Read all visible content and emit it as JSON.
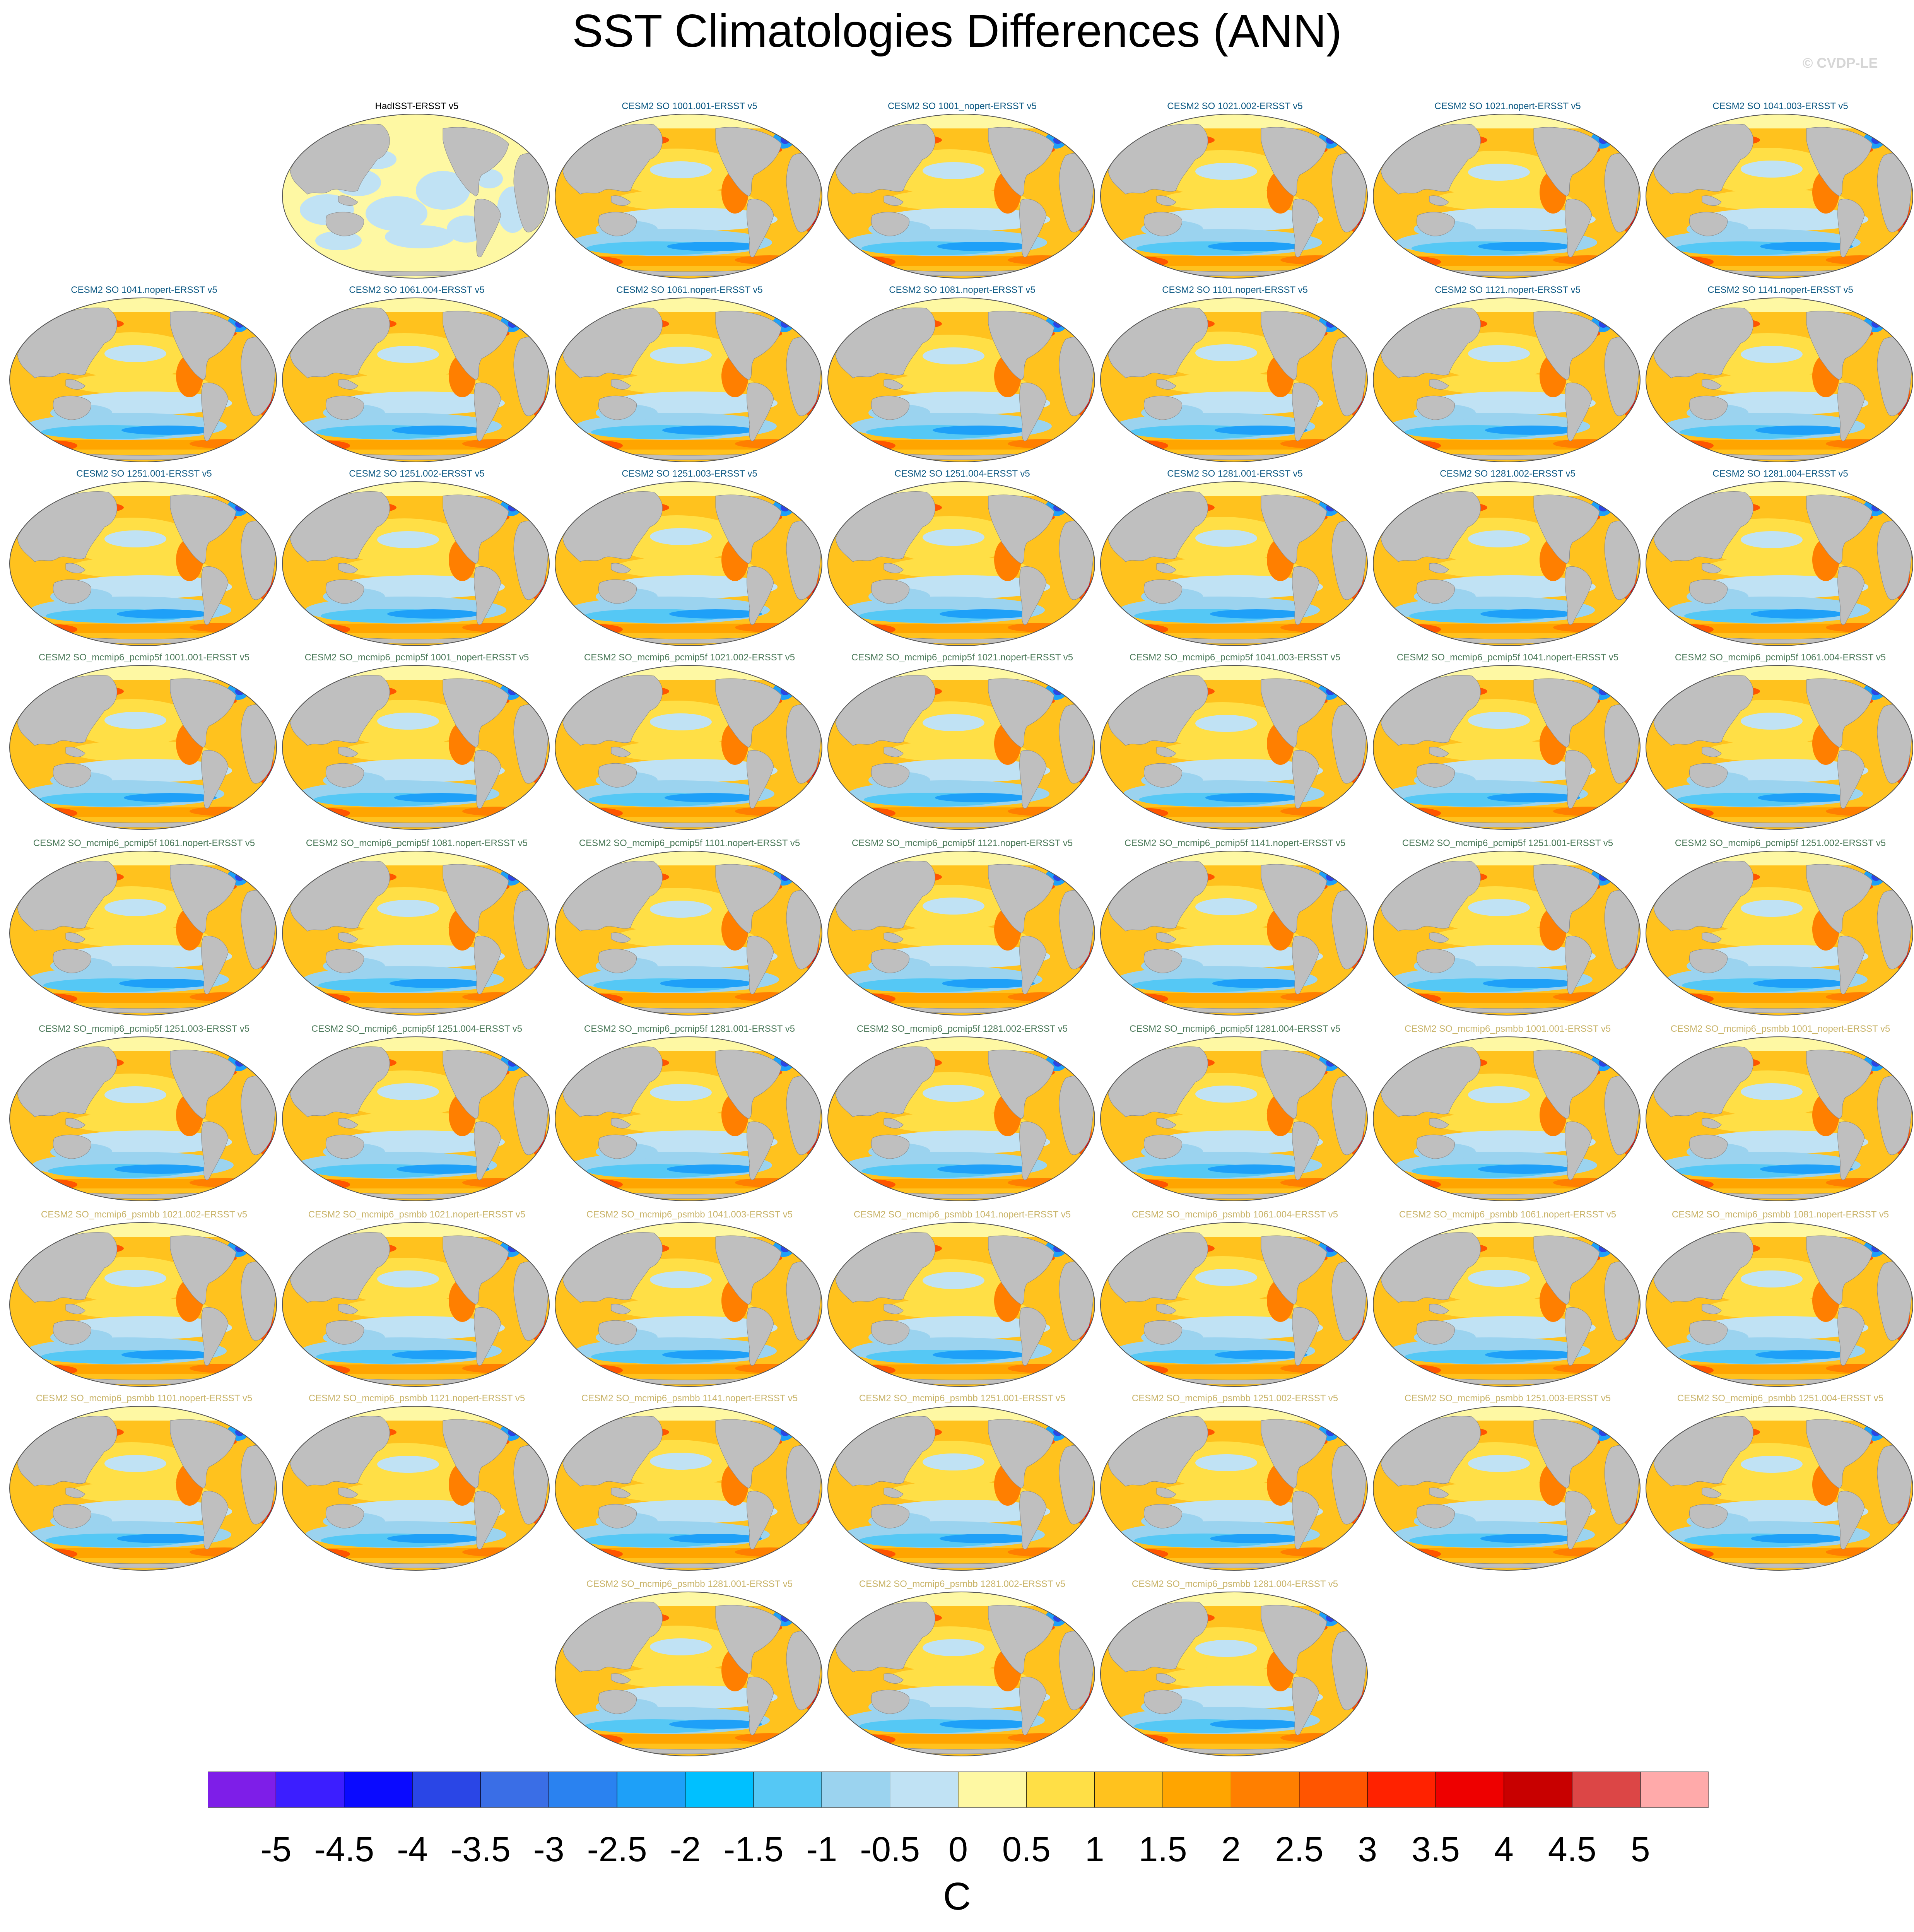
{
  "title": "SST Climatologies Differences (ANN)",
  "watermark": "© CVDP-LE",
  "chart_data": {
    "type": "heatmap",
    "title": "SST Climatologies Differences (ANN)",
    "projection": "global map, Pacific-centered",
    "land_color": "#bfbfbf",
    "colorbar": {
      "units": "C",
      "tick_labels": [
        "-5",
        "-4.5",
        "-4",
        "-3.5",
        "-3",
        "-2.5",
        "-2",
        "-1.5",
        "-1",
        "-0.5",
        "0",
        "0.5",
        "1",
        "1.5",
        "2",
        "2.5",
        "3",
        "3.5",
        "4",
        "4.5",
        "5"
      ],
      "colors": [
        "#7e1ee8",
        "#3c1eff",
        "#0a0aff",
        "#2a46e6",
        "#3a6ee6",
        "#2a82f0",
        "#1ea0f8",
        "#00c0ff",
        "#55c8f5",
        "#9bd3ef",
        "#c0e2f4",
        "#fef8a3",
        "#ffdf46",
        "#ffc21e",
        "#ffa500",
        "#ff7f00",
        "#ff5500",
        "#ff2200",
        "#ee0000",
        "#c80000",
        "#dc4646",
        "#ffaaaa"
      ]
    },
    "panels": [
      {
        "label": "HadISST-ERSST v5",
        "group": "g0",
        "style": "obs"
      },
      {
        "label": "CESM2 SO 1001.001-ERSST v5",
        "group": "g1",
        "style": "model"
      },
      {
        "label": "CESM2 SO 1001_nopert-ERSST v5",
        "group": "g1",
        "style": "model"
      },
      {
        "label": "CESM2 SO 1021.002-ERSST v5",
        "group": "g1",
        "style": "model"
      },
      {
        "label": "CESM2 SO 1021.nopert-ERSST v5",
        "group": "g1",
        "style": "model"
      },
      {
        "label": "CESM2 SO 1041.003-ERSST v5",
        "group": "g1",
        "style": "model"
      },
      {
        "label": "CESM2 SO 1041.nopert-ERSST v5",
        "group": "g1",
        "style": "model"
      },
      {
        "label": "CESM2 SO 1061.004-ERSST v5",
        "group": "g1",
        "style": "model"
      },
      {
        "label": "CESM2 SO 1061.nopert-ERSST v5",
        "group": "g1",
        "style": "model"
      },
      {
        "label": "CESM2 SO 1081.nopert-ERSST v5",
        "group": "g1",
        "style": "model"
      },
      {
        "label": "CESM2 SO 1101.nopert-ERSST v5",
        "group": "g1",
        "style": "model"
      },
      {
        "label": "CESM2 SO 1121.nopert-ERSST v5",
        "group": "g1",
        "style": "model"
      },
      {
        "label": "CESM2 SO 1141.nopert-ERSST v5",
        "group": "g1",
        "style": "model"
      },
      {
        "label": "CESM2 SO 1251.001-ERSST v5",
        "group": "g1",
        "style": "model"
      },
      {
        "label": "CESM2 SO 1251.002-ERSST v5",
        "group": "g1",
        "style": "model"
      },
      {
        "label": "CESM2 SO 1251.003-ERSST v5",
        "group": "g1",
        "style": "model"
      },
      {
        "label": "CESM2 SO 1251.004-ERSST v5",
        "group": "g1",
        "style": "model"
      },
      {
        "label": "CESM2 SO 1281.001-ERSST v5",
        "group": "g1",
        "style": "model"
      },
      {
        "label": "CESM2 SO 1281.002-ERSST v5",
        "group": "g1",
        "style": "model"
      },
      {
        "label": "CESM2 SO 1281.004-ERSST v5",
        "group": "g1",
        "style": "model"
      },
      {
        "label": "CESM2 SO_mcmip6_pcmip5f 1001.001-ERSST v5",
        "group": "g2",
        "style": "model"
      },
      {
        "label": "CESM2 SO_mcmip6_pcmip5f 1001_nopert-ERSST v5",
        "group": "g2",
        "style": "model"
      },
      {
        "label": "CESM2 SO_mcmip6_pcmip5f 1021.002-ERSST v5",
        "group": "g2",
        "style": "model"
      },
      {
        "label": "CESM2 SO_mcmip6_pcmip5f 1021.nopert-ERSST v5",
        "group": "g2",
        "style": "model"
      },
      {
        "label": "CESM2 SO_mcmip6_pcmip5f 1041.003-ERSST v5",
        "group": "g2",
        "style": "model"
      },
      {
        "label": "CESM2 SO_mcmip6_pcmip5f 1041.nopert-ERSST v5",
        "group": "g2",
        "style": "model"
      },
      {
        "label": "CESM2 SO_mcmip6_pcmip5f 1061.004-ERSST v5",
        "group": "g2",
        "style": "model"
      },
      {
        "label": "CESM2 SO_mcmip6_pcmip5f 1061.nopert-ERSST v5",
        "group": "g2",
        "style": "model"
      },
      {
        "label": "CESM2 SO_mcmip6_pcmip5f 1081.nopert-ERSST v5",
        "group": "g2",
        "style": "model"
      },
      {
        "label": "CESM2 SO_mcmip6_pcmip5f 1101.nopert-ERSST v5",
        "group": "g2",
        "style": "model"
      },
      {
        "label": "CESM2 SO_mcmip6_pcmip5f 1121.nopert-ERSST v5",
        "group": "g2",
        "style": "model"
      },
      {
        "label": "CESM2 SO_mcmip6_pcmip5f 1141.nopert-ERSST v5",
        "group": "g2",
        "style": "model"
      },
      {
        "label": "CESM2 SO_mcmip6_pcmip5f 1251.001-ERSST v5",
        "group": "g2",
        "style": "model"
      },
      {
        "label": "CESM2 SO_mcmip6_pcmip5f 1251.002-ERSST v5",
        "group": "g2",
        "style": "model"
      },
      {
        "label": "CESM2 SO_mcmip6_pcmip5f 1251.003-ERSST v5",
        "group": "g2",
        "style": "model"
      },
      {
        "label": "CESM2 SO_mcmip6_pcmip5f 1251.004-ERSST v5",
        "group": "g2",
        "style": "model"
      },
      {
        "label": "CESM2 SO_mcmip6_pcmip5f 1281.001-ERSST v5",
        "group": "g2",
        "style": "model"
      },
      {
        "label": "CESM2 SO_mcmip6_pcmip5f 1281.002-ERSST v5",
        "group": "g2",
        "style": "model"
      },
      {
        "label": "CESM2 SO_mcmip6_pcmip5f 1281.004-ERSST v5",
        "group": "g2",
        "style": "model"
      },
      {
        "label": "CESM2 SO_mcmip6_psmbb 1001.001-ERSST v5",
        "group": "g3",
        "style": "model"
      },
      {
        "label": "CESM2 SO_mcmip6_psmbb 1001_nopert-ERSST v5",
        "group": "g3",
        "style": "model"
      },
      {
        "label": "CESM2 SO_mcmip6_psmbb 1021.002-ERSST v5",
        "group": "g3",
        "style": "model"
      },
      {
        "label": "CESM2 SO_mcmip6_psmbb 1021.nopert-ERSST v5",
        "group": "g3",
        "style": "model"
      },
      {
        "label": "CESM2 SO_mcmip6_psmbb 1041.003-ERSST v5",
        "group": "g3",
        "style": "model"
      },
      {
        "label": "CESM2 SO_mcmip6_psmbb 1041.nopert-ERSST v5",
        "group": "g3",
        "style": "model"
      },
      {
        "label": "CESM2 SO_mcmip6_psmbb 1061.004-ERSST v5",
        "group": "g3",
        "style": "model"
      },
      {
        "label": "CESM2 SO_mcmip6_psmbb 1061.nopert-ERSST v5",
        "group": "g3",
        "style": "model"
      },
      {
        "label": "CESM2 SO_mcmip6_psmbb 1081.nopert-ERSST v5",
        "group": "g3",
        "style": "model"
      },
      {
        "label": "CESM2 SO_mcmip6_psmbb 1101.nopert-ERSST v5",
        "group": "g3",
        "style": "model"
      },
      {
        "label": "CESM2 SO_mcmip6_psmbb 1121.nopert-ERSST v5",
        "group": "g3",
        "style": "model"
      },
      {
        "label": "CESM2 SO_mcmip6_psmbb 1141.nopert-ERSST v5",
        "group": "g3",
        "style": "model"
      },
      {
        "label": "CESM2 SO_mcmip6_psmbb 1251.001-ERSST v5",
        "group": "g3",
        "style": "model"
      },
      {
        "label": "CESM2 SO_mcmip6_psmbb 1251.002-ERSST v5",
        "group": "g3",
        "style": "model"
      },
      {
        "label": "CESM2 SO_mcmip6_psmbb 1251.003-ERSST v5",
        "group": "g3",
        "style": "model"
      },
      {
        "label": "CESM2 SO_mcmip6_psmbb 1251.004-ERSST v5",
        "group": "g3",
        "style": "model"
      },
      {
        "label": "CESM2 SO_mcmip6_psmbb 1281.001-ERSST v5",
        "group": "g3",
        "style": "model"
      },
      {
        "label": "CESM2 SO_mcmip6_psmbb 1281.002-ERSST v5",
        "group": "g3",
        "style": "model"
      },
      {
        "label": "CESM2 SO_mcmip6_psmbb 1281.004-ERSST v5",
        "group": "g3",
        "style": "model"
      }
    ]
  }
}
